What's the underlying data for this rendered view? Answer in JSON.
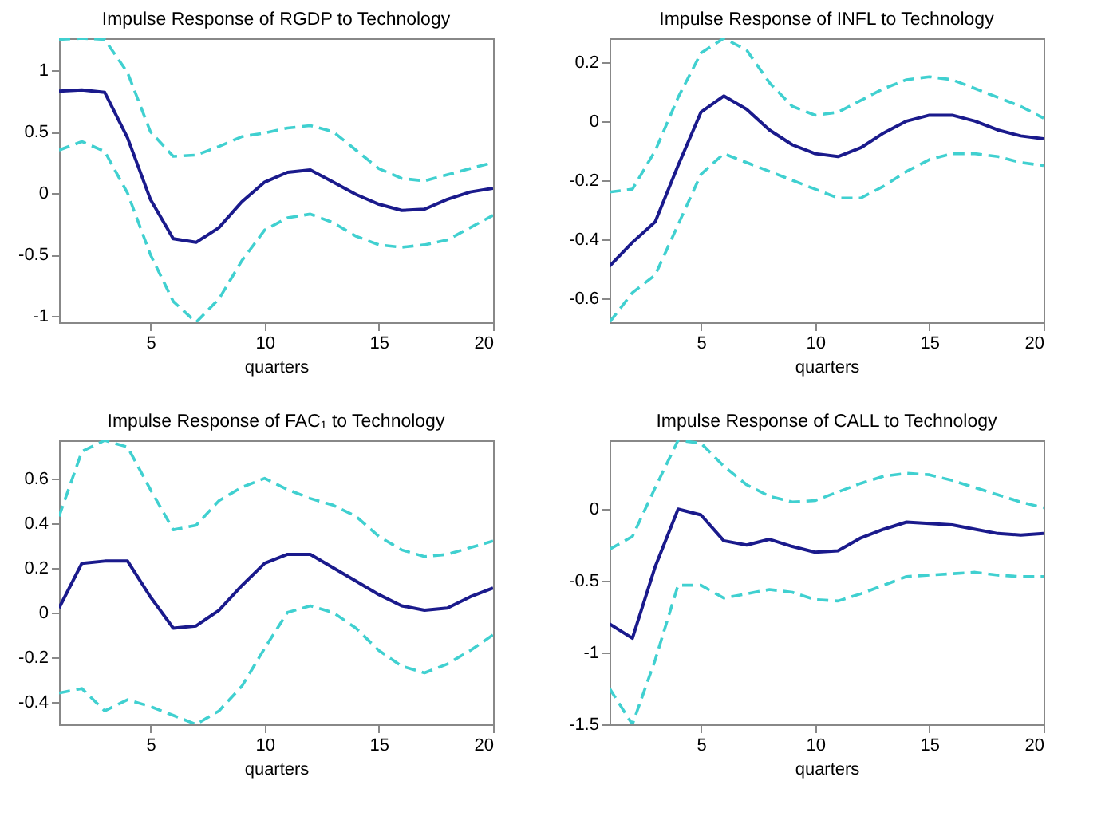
{
  "chart_data": [
    {
      "type": "line",
      "title": "Impulse Response of RGDP to Technology",
      "xlabel": "quarters",
      "x": [
        1,
        2,
        3,
        4,
        5,
        6,
        7,
        8,
        9,
        10,
        11,
        12,
        13,
        14,
        15,
        16,
        17,
        18,
        19,
        20
      ],
      "xlim": [
        1,
        20
      ],
      "xticks": [
        5,
        10,
        15,
        20
      ],
      "ylim": [
        -1.05,
        1.26
      ],
      "yticks": [
        -1,
        -0.5,
        0,
        0.5,
        1
      ],
      "grid": false,
      "series": [
        {
          "color": "#1a1a8c",
          "line_style": "solid",
          "values": [
            0.83,
            0.84,
            0.82,
            0.45,
            -0.05,
            -0.37,
            -0.4,
            -0.28,
            -0.07,
            0.09,
            0.17,
            0.19,
            0.09,
            -0.01,
            -0.09,
            -0.14,
            -0.13,
            -0.05,
            0.01,
            0.04
          ]
        },
        {
          "color": "#40d0d0",
          "line_style": "dashed",
          "values": [
            1.25,
            1.26,
            1.25,
            0.98,
            0.5,
            0.3,
            0.31,
            0.38,
            0.46,
            0.49,
            0.53,
            0.55,
            0.5,
            0.35,
            0.2,
            0.12,
            0.1,
            0.15,
            0.2,
            0.25
          ]
        },
        {
          "color": "#40d0d0",
          "line_style": "dashed",
          "values": [
            0.35,
            0.42,
            0.34,
            0.0,
            -0.5,
            -0.88,
            -1.05,
            -0.86,
            -0.55,
            -0.3,
            -0.2,
            -0.17,
            -0.24,
            -0.35,
            -0.42,
            -0.44,
            -0.42,
            -0.38,
            -0.28,
            -0.18
          ]
        }
      ]
    },
    {
      "type": "line",
      "title": "Impulse Response of INFL to Technology",
      "xlabel": "quarters",
      "x": [
        1,
        2,
        3,
        4,
        5,
        6,
        7,
        8,
        9,
        10,
        11,
        12,
        13,
        14,
        15,
        16,
        17,
        18,
        19,
        20
      ],
      "xlim": [
        1,
        20
      ],
      "xticks": [
        5,
        10,
        15,
        20
      ],
      "ylim": [
        -0.68,
        0.28
      ],
      "yticks": [
        -0.6,
        -0.4,
        -0.2,
        0,
        0.2
      ],
      "grid": false,
      "series": [
        {
          "color": "#1a1a8c",
          "line_style": "solid",
          "values": [
            -0.49,
            -0.41,
            -0.34,
            -0.15,
            0.03,
            0.085,
            0.04,
            -0.03,
            -0.08,
            -0.11,
            -0.12,
            -0.09,
            -0.04,
            0.0,
            0.02,
            0.02,
            0.0,
            -0.03,
            -0.05,
            -0.06
          ]
        },
        {
          "color": "#40d0d0",
          "line_style": "dashed",
          "values": [
            -0.24,
            -0.23,
            -0.1,
            0.08,
            0.23,
            0.28,
            0.24,
            0.13,
            0.05,
            0.02,
            0.03,
            0.07,
            0.11,
            0.14,
            0.15,
            0.14,
            0.11,
            0.08,
            0.05,
            0.01
          ]
        },
        {
          "color": "#40d0d0",
          "line_style": "dashed",
          "values": [
            -0.68,
            -0.58,
            -0.52,
            -0.35,
            -0.18,
            -0.11,
            -0.14,
            -0.17,
            -0.2,
            -0.23,
            -0.26,
            -0.26,
            -0.22,
            -0.17,
            -0.13,
            -0.11,
            -0.11,
            -0.12,
            -0.14,
            -0.15
          ]
        }
      ]
    },
    {
      "type": "line",
      "title": "Impulse Response of FAC₁ to Technology",
      "xlabel": "quarters",
      "x": [
        1,
        2,
        3,
        4,
        5,
        6,
        7,
        8,
        9,
        10,
        11,
        12,
        13,
        14,
        15,
        16,
        17,
        18,
        19,
        20
      ],
      "xlim": [
        1,
        20
      ],
      "xticks": [
        5,
        10,
        15,
        20
      ],
      "ylim": [
        -0.5,
        0.77
      ],
      "yticks": [
        -0.4,
        -0.2,
        0,
        0.2,
        0.4,
        0.6
      ],
      "grid": false,
      "series": [
        {
          "color": "#1a1a8c",
          "line_style": "solid",
          "values": [
            0.02,
            0.22,
            0.23,
            0.23,
            0.07,
            -0.07,
            -0.06,
            0.01,
            0.12,
            0.22,
            0.26,
            0.26,
            0.2,
            0.14,
            0.08,
            0.03,
            0.01,
            0.02,
            0.07,
            0.11
          ]
        },
        {
          "color": "#40d0d0",
          "line_style": "dashed",
          "values": [
            0.43,
            0.72,
            0.77,
            0.74,
            0.55,
            0.37,
            0.39,
            0.5,
            0.56,
            0.6,
            0.55,
            0.51,
            0.48,
            0.43,
            0.34,
            0.28,
            0.25,
            0.26,
            0.29,
            0.32
          ]
        },
        {
          "color": "#40d0d0",
          "line_style": "dashed",
          "values": [
            -0.36,
            -0.34,
            -0.44,
            -0.39,
            -0.42,
            -0.46,
            -0.5,
            -0.44,
            -0.33,
            -0.16,
            0.0,
            0.03,
            0.0,
            -0.07,
            -0.17,
            -0.24,
            -0.27,
            -0.23,
            -0.17,
            -0.1
          ]
        }
      ]
    },
    {
      "type": "line",
      "title": "Impulse Response of CALL to Technology",
      "xlabel": "quarters",
      "x": [
        1,
        2,
        3,
        4,
        5,
        6,
        7,
        8,
        9,
        10,
        11,
        12,
        13,
        14,
        15,
        16,
        17,
        18,
        19,
        20
      ],
      "xlim": [
        1,
        20
      ],
      "xticks": [
        5,
        10,
        15,
        20
      ],
      "ylim": [
        -1.5,
        0.48
      ],
      "yticks": [
        -1.5,
        -1,
        -0.5,
        0
      ],
      "grid": false,
      "series": [
        {
          "color": "#1a1a8c",
          "line_style": "solid",
          "values": [
            -0.8,
            -0.9,
            -0.4,
            0.0,
            -0.04,
            -0.22,
            -0.25,
            -0.21,
            -0.26,
            -0.3,
            -0.29,
            -0.2,
            -0.14,
            -0.09,
            -0.1,
            -0.11,
            -0.14,
            -0.17,
            -0.18,
            -0.17
          ]
        },
        {
          "color": "#40d0d0",
          "line_style": "dashed",
          "values": [
            -0.28,
            -0.19,
            0.15,
            0.48,
            0.46,
            0.3,
            0.17,
            0.09,
            0.05,
            0.06,
            0.12,
            0.18,
            0.23,
            0.25,
            0.24,
            0.2,
            0.15,
            0.1,
            0.05,
            0.01
          ]
        },
        {
          "color": "#40d0d0",
          "line_style": "dashed",
          "values": [
            -1.25,
            -1.5,
            -1.05,
            -0.53,
            -0.53,
            -0.62,
            -0.59,
            -0.56,
            -0.58,
            -0.63,
            -0.64,
            -0.59,
            -0.53,
            -0.47,
            -0.46,
            -0.45,
            -0.44,
            -0.46,
            -0.47,
            -0.47
          ]
        }
      ]
    }
  ]
}
